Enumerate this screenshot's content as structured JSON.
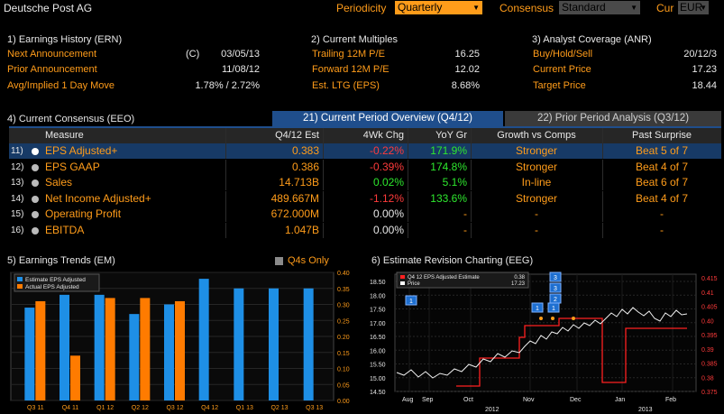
{
  "header": {
    "security": "Deutsche Post AG",
    "periodicity_label": "Periodicity",
    "periodicity_value": "Quarterly",
    "consensus_label": "Consensus",
    "consensus_value": "Standard",
    "cur_label": "Cur",
    "cur_value": "EUR"
  },
  "earnings_history": {
    "title": "1) Earnings History (ERN)",
    "next_label": "Next Announcement",
    "next_flag": "(C)",
    "next_value": "03/05/13",
    "prior_label": "Prior Announcement",
    "prior_value": "11/08/12",
    "move_label": "Avg/Implied 1 Day Move",
    "move_value": "1.78% / 2.72%"
  },
  "current_multiples": {
    "title": "2) Current Multiples",
    "trailing_label": "Trailing 12M P/E",
    "trailing_value": "16.25",
    "forward_label": "Forward 12M P/E",
    "forward_value": "12.02",
    "ltg_label": "Est. LTG (EPS)",
    "ltg_value": "8.68%"
  },
  "analyst_coverage": {
    "title": "3) Analyst Coverage (ANR)",
    "bhs_label": "Buy/Hold/Sell",
    "bhs_value": "20/12/3",
    "price_label": "Current Price",
    "price_value": "17.23",
    "target_label": "Target Price",
    "target_value": "18.44"
  },
  "consensus": {
    "title": "4) Current Consensus (EEO)",
    "tab_current": "21) Current Period Overview (Q4/12)",
    "tab_prior": "22) Prior Period Analysis (Q3/12)",
    "columns": [
      "Measure",
      "Q4/12 Est",
      "4Wk Chg",
      "YoY Gr",
      "Growth vs Comps",
      "Past Surprise"
    ],
    "rows": [
      {
        "num": "11)",
        "measure": "EPS Adjusted+",
        "est": "0.383",
        "chg": "-0.22%",
        "chg_color": "r",
        "yoy": "171.9%",
        "yoy_color": "g",
        "comps": "Stronger",
        "surprise": "Beat 5 of 7"
      },
      {
        "num": "12)",
        "measure": "EPS GAAP",
        "est": "0.386",
        "chg": "-0.39%",
        "chg_color": "r",
        "yoy": "174.8%",
        "yoy_color": "g",
        "comps": "Stronger",
        "surprise": "Beat 4 of 7"
      },
      {
        "num": "13)",
        "measure": "Sales",
        "est": "14.713B",
        "chg": "0.02%",
        "chg_color": "g",
        "yoy": "5.1%",
        "yoy_color": "g",
        "comps": "In-line",
        "surprise": "Beat 6 of 7"
      },
      {
        "num": "14)",
        "measure": "Net Income Adjusted+",
        "est": "489.667M",
        "chg": "-1.12%",
        "chg_color": "r",
        "yoy": "133.6%",
        "yoy_color": "g",
        "comps": "Stronger",
        "surprise": "Beat 4 of 7"
      },
      {
        "num": "15)",
        "measure": "Operating Profit",
        "est": "672.000M",
        "chg": "0.00%",
        "chg_color": "w",
        "yoy": "-",
        "yoy_color": "o",
        "comps": "-",
        "surprise": "-"
      },
      {
        "num": "16)",
        "measure": "EBITDA",
        "est": "1.047B",
        "chg": "0.00%",
        "chg_color": "w",
        "yoy": "-",
        "yoy_color": "o",
        "comps": "-",
        "surprise": "-"
      }
    ]
  },
  "earnings_trends": {
    "title": "5) Earnings Trends (EM)",
    "q4s_only": "Q4s Only"
  },
  "revision_chart": {
    "title": "6) Estimate Revision Charting (EEG)"
  },
  "chart_data": [
    {
      "type": "bar",
      "categories": [
        "Q3 11",
        "Q4 11",
        "Q1 12",
        "Q2 12",
        "Q3 12",
        "Q4 12",
        "Q1 13",
        "Q2 13",
        "Q3 13"
      ],
      "series": [
        {
          "name": "Estimate EPS Adjusted",
          "color": "#1e8fe6",
          "values": [
            0.29,
            0.33,
            0.33,
            0.27,
            0.3,
            0.38,
            0.35,
            0.35,
            0.35
          ]
        },
        {
          "name": "Actual EPS Adjusted",
          "color": "#ff7b00",
          "values": [
            0.31,
            0.14,
            0.32,
            0.32,
            0.31,
            null,
            null,
            null,
            null
          ]
        }
      ],
      "ylim": [
        0,
        0.4
      ],
      "yticks": [
        "0.40",
        "0.35",
        "0.30",
        "0.25",
        "0.20",
        "0.15",
        "0.10",
        "0.05",
        "0.00"
      ]
    },
    {
      "type": "line",
      "series": [
        {
          "name": "Q4 12 EPS Adjusted Estimate",
          "last_value": "0.38",
          "color": "#ff2020"
        },
        {
          "name": "Price",
          "last_value": "17.23",
          "color": "#ffffff"
        }
      ],
      "x_ticks": [
        "Aug",
        "Sep",
        "Oct",
        "Nov",
        "Dec",
        "Jan",
        "Feb"
      ],
      "x_years": [
        "2012",
        "2013"
      ],
      "left_ylim": [
        14.5,
        18.5
      ],
      "left_ticks": [
        "18.50",
        "18.00",
        "17.50",
        "17.00",
        "16.50",
        "16.00",
        "15.50",
        "15.00",
        "14.50"
      ],
      "right_ylim": [
        0.375,
        0.415
      ],
      "right_ticks": [
        "0.415",
        "0.41",
        "0.405",
        "0.40",
        "0.395",
        "0.39",
        "0.385",
        "0.38",
        "0.375"
      ],
      "markers": [
        "1",
        "1",
        "1",
        "2",
        "3",
        "3"
      ]
    }
  ]
}
